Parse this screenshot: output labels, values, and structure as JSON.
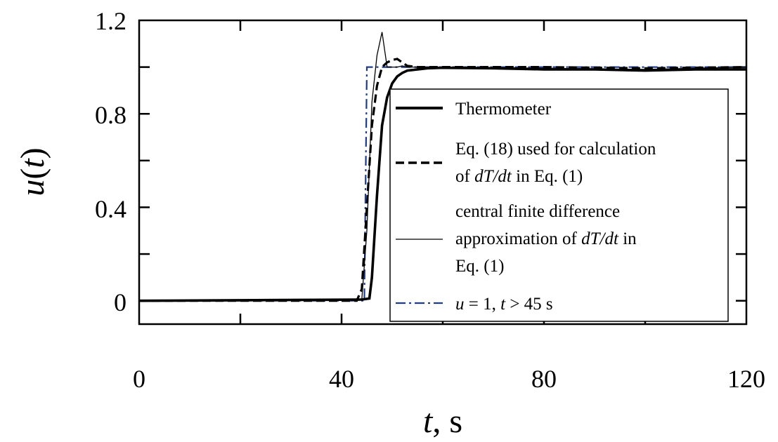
{
  "chart_data": {
    "type": "line",
    "xlim": [
      0,
      120
    ],
    "ylim": [
      -0.1,
      1.2
    ],
    "x_ticks": [
      "0",
      "40",
      "80",
      "120"
    ],
    "x_tick_values": [
      0,
      40,
      80,
      120
    ],
    "y_ticks": [
      "0",
      "0.4",
      "0.8",
      "1.2"
    ],
    "y_tick_values": [
      0,
      0.4,
      0.8,
      1.2
    ],
    "xlabel": {
      "var": "t",
      "rest": ", s"
    },
    "ylabel": {
      "var": "u",
      "paren_open": "(",
      "arg": "t",
      "paren_close": ")"
    },
    "legend_position": "right",
    "series": [
      {
        "name": "Thermometer",
        "style": "thick-solid",
        "color": "#000000",
        "x": [
          0,
          44,
          45.5,
          46,
          47,
          48,
          49,
          50,
          51,
          52,
          53,
          55,
          57,
          60,
          70,
          80,
          90,
          100,
          110,
          120
        ],
        "y": [
          0,
          0.005,
          0.01,
          0.1,
          0.45,
          0.75,
          0.87,
          0.93,
          0.96,
          0.975,
          0.985,
          0.99,
          0.995,
          0.997,
          0.995,
          0.99,
          0.99,
          0.985,
          0.99,
          0.99
        ]
      },
      {
        "name": "Eq. (18) used for calculation of dT/dt in Eq. (1)",
        "style": "thick-dashed",
        "color": "#000000",
        "x": [
          0,
          43,
          44,
          45,
          46,
          47,
          48,
          49,
          50,
          51,
          52,
          53,
          55,
          60,
          80,
          100,
          120
        ],
        "y": [
          0,
          0,
          0.05,
          0.4,
          0.75,
          0.92,
          1.0,
          1.02,
          1.03,
          1.035,
          1.02,
          1.005,
          1.0,
          1.0,
          1.0,
          0.995,
          1.0
        ]
      },
      {
        "name": "central finite difference approximation of dT/dt in Eq. (1)",
        "style": "thin-solid",
        "color": "#000000",
        "x": [
          0,
          44,
          45,
          46,
          47,
          48,
          49,
          50,
          51,
          52,
          53,
          60,
          80,
          100,
          120
        ],
        "y": [
          0,
          0.005,
          0.3,
          0.85,
          1.05,
          1.15,
          1.0,
          1.0,
          1.0,
          1.005,
          1.0,
          1.0,
          0.995,
          0.99,
          1.0
        ]
      },
      {
        "name": "u = 1, t > 45 s",
        "style": "dash-dot",
        "color": "#1f3c8c",
        "x": [
          0,
          44.5,
          45,
          120
        ],
        "y": [
          0,
          0,
          1,
          1
        ]
      }
    ],
    "legend": {
      "item1": "Thermometer",
      "item2_line1": "Eq. (18) used for calculation",
      "item2_line2_a": "of ",
      "item2_line2_var": "dT/dt",
      "item2_line2_b": " in Eq. (1)",
      "item3_line1": "central finite difference",
      "item3_line2_a": "approximation of ",
      "item3_line2_var": "dT/dt",
      "item3_line2_b": " in",
      "item3_line3": "Eq. (1)",
      "item4_var1": "u",
      "item4_mid": " = 1, ",
      "item4_var2": "t",
      "item4_end": " > 45 s"
    }
  }
}
